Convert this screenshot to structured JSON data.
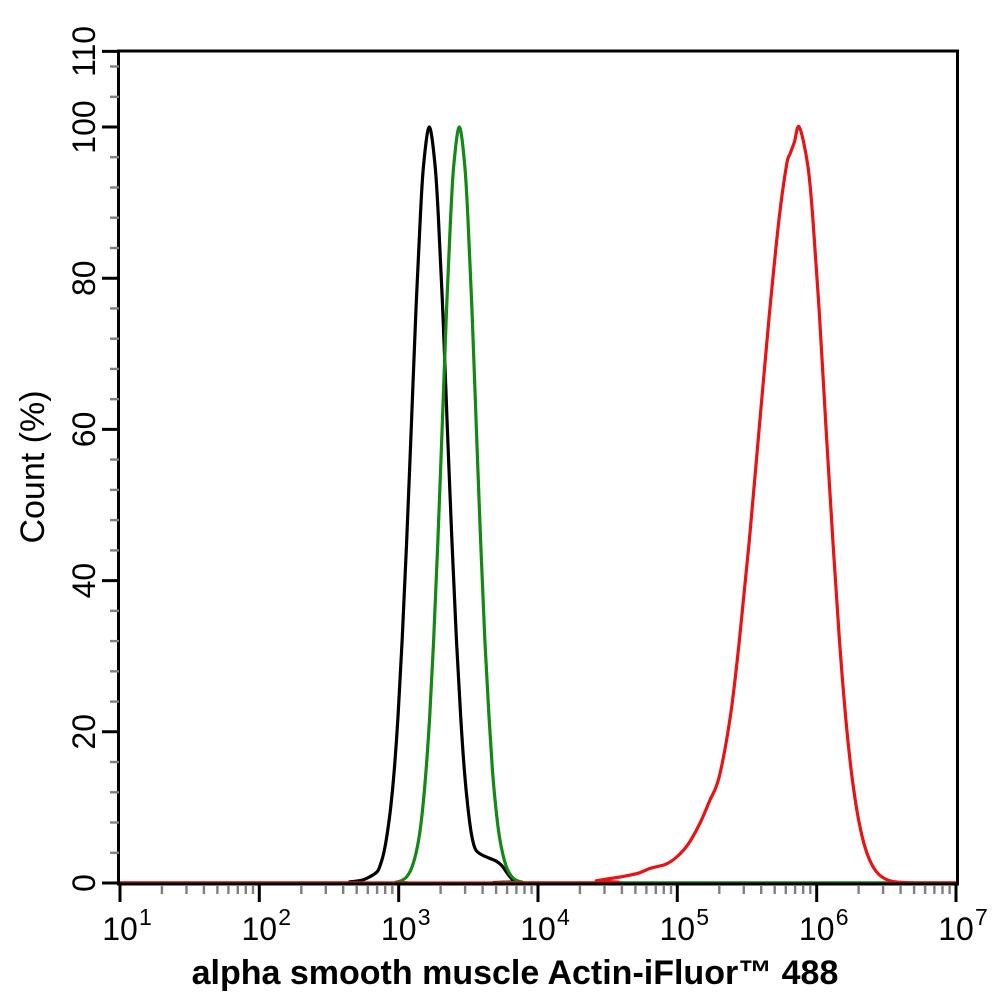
{
  "figure": {
    "background_color": "#ffffff",
    "plot_border_color": "#000000",
    "major_tick_color": "#000000",
    "minor_tick_color": "#808080"
  },
  "chart_data": {
    "type": "line",
    "subtype": "flow-cytometry-overlay-histogram",
    "title": "",
    "xlabel": "alpha smooth muscle Actin-iFluor™ 488",
    "ylabel": "Count  (%)",
    "x_scale": "log10",
    "xlim": [
      10,
      10000000
    ],
    "ylim": [
      0,
      110
    ],
    "grid": false,
    "legend": "none",
    "x_tick_base": "10",
    "x_tick_exponents": [
      1,
      2,
      3,
      4,
      5,
      6,
      7
    ],
    "y_major_tick_values": [
      0,
      20,
      40,
      60,
      80,
      100,
      110
    ],
    "y_minor_tick_step": 4,
    "x_minor_ticks": "log decades 2-9",
    "series": [
      {
        "name": "black-histogram",
        "color": "#000000",
        "peak_x_approx": 1660,
        "peak_y": 100,
        "points_log10x_pct": [
          [
            1.0,
            0
          ],
          [
            2.55,
            0
          ],
          [
            2.65,
            0.15
          ],
          [
            2.74,
            0.4
          ],
          [
            2.79,
            0.8
          ],
          [
            2.846,
            1.5
          ],
          [
            2.87,
            2.5
          ],
          [
            2.893,
            4
          ],
          [
            2.918,
            6.5
          ],
          [
            2.943,
            10
          ],
          [
            2.969,
            15
          ],
          [
            2.995,
            22
          ],
          [
            3.025,
            32
          ],
          [
            3.057,
            45
          ],
          [
            3.09,
            60
          ],
          [
            3.122,
            75
          ],
          [
            3.155,
            88
          ],
          [
            3.179,
            95
          ],
          [
            3.22,
            100
          ],
          [
            3.261,
            95
          ],
          [
            3.285,
            88
          ],
          [
            3.318,
            75
          ],
          [
            3.35,
            60
          ],
          [
            3.383,
            45
          ],
          [
            3.415,
            32
          ],
          [
            3.445,
            22
          ],
          [
            3.471,
            15
          ],
          [
            3.497,
            10
          ],
          [
            3.522,
            6.5
          ],
          [
            3.55,
            4.5
          ],
          [
            3.59,
            3.8
          ],
          [
            3.65,
            3.3
          ],
          [
            3.7,
            2.9
          ],
          [
            3.74,
            2.3
          ],
          [
            3.775,
            1.4
          ],
          [
            3.81,
            0.6
          ],
          [
            3.85,
            0.2
          ],
          [
            3.93,
            0
          ],
          [
            7.0,
            0
          ]
        ]
      },
      {
        "name": "green-histogram",
        "color": "#148814",
        "peak_x_approx": 2720,
        "peak_y": 100,
        "points_log10x_pct": [
          [
            1.0,
            0
          ],
          [
            2.9,
            0
          ],
          [
            2.98,
            0.1
          ],
          [
            3.024,
            0.35
          ],
          [
            3.056,
            0.8
          ],
          [
            3.081,
            1.5
          ],
          [
            3.103,
            2.5
          ],
          [
            3.125,
            4
          ],
          [
            3.15,
            6.5
          ],
          [
            3.173,
            10
          ],
          [
            3.197,
            15
          ],
          [
            3.223,
            22
          ],
          [
            3.251,
            32
          ],
          [
            3.281,
            45
          ],
          [
            3.312,
            60
          ],
          [
            3.342,
            75
          ],
          [
            3.373,
            88
          ],
          [
            3.396,
            95
          ],
          [
            3.435,
            100
          ],
          [
            3.474,
            95
          ],
          [
            3.497,
            88
          ],
          [
            3.528,
            75
          ],
          [
            3.558,
            60
          ],
          [
            3.589,
            45
          ],
          [
            3.619,
            32
          ],
          [
            3.648,
            22
          ],
          [
            3.673,
            15
          ],
          [
            3.697,
            10
          ],
          [
            3.72,
            6.5
          ],
          [
            3.745,
            4
          ],
          [
            3.767,
            2.5
          ],
          [
            3.789,
            1.5
          ],
          [
            3.814,
            0.8
          ],
          [
            3.846,
            0.35
          ],
          [
            3.889,
            0.1
          ],
          [
            3.95,
            0
          ],
          [
            7.0,
            0
          ]
        ]
      },
      {
        "name": "red-histogram",
        "color": "#e81313",
        "peak_x_approx": 750000,
        "peak_y": 100,
        "points_log10x_pct": [
          [
            1.0,
            0
          ],
          [
            4.3,
            0
          ],
          [
            4.42,
            0.3
          ],
          [
            4.52,
            0.6
          ],
          [
            4.62,
            0.9
          ],
          [
            4.72,
            1.3
          ],
          [
            4.8,
            1.9
          ],
          [
            4.86,
            2.2
          ],
          [
            4.92,
            2.5
          ],
          [
            5.0,
            3.5
          ],
          [
            5.08,
            5.2
          ],
          [
            5.16,
            7.8
          ],
          [
            5.23,
            10.8
          ],
          [
            5.3,
            14
          ],
          [
            5.38,
            22
          ],
          [
            5.445,
            32
          ],
          [
            5.515,
            45
          ],
          [
            5.587,
            60
          ],
          [
            5.659,
            75
          ],
          [
            5.731,
            88
          ],
          [
            5.784,
            95
          ],
          [
            5.81,
            96.5
          ],
          [
            5.84,
            98
          ],
          [
            5.875,
            100
          ],
          [
            5.936,
            95
          ],
          [
            5.972,
            88
          ],
          [
            6.02,
            75
          ],
          [
            6.068,
            60
          ],
          [
            6.117,
            45
          ],
          [
            6.164,
            32
          ],
          [
            6.208,
            22
          ],
          [
            6.247,
            15
          ],
          [
            6.285,
            10
          ],
          [
            6.322,
            6.5
          ],
          [
            6.36,
            4
          ],
          [
            6.394,
            2.5
          ],
          [
            6.429,
            1.5
          ],
          [
            6.469,
            0.8
          ],
          [
            6.518,
            0.35
          ],
          [
            6.586,
            0.1
          ],
          [
            6.75,
            0
          ],
          [
            7.0,
            0
          ]
        ]
      }
    ]
  }
}
